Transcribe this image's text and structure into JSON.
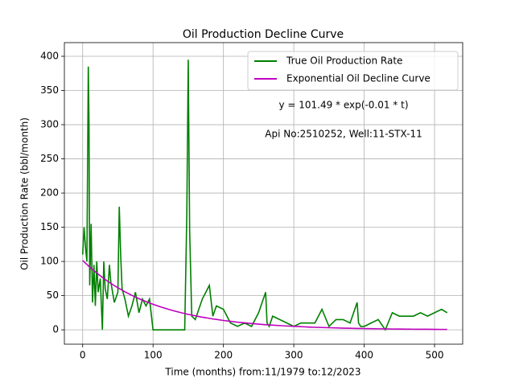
{
  "chart_data": {
    "type": "line",
    "title": "Oil Production Decline Curve",
    "x_label": "Time (months) from:11/1979 to:12/2023",
    "y_label": "Oil Production Rate (bbl/month)",
    "annotations": [
      "y = 101.49 * exp(-0.01 * t)",
      "Api No:2510252, Well:11-STX-11"
    ],
    "x": [
      0,
      2,
      4,
      6,
      8,
      9,
      10,
      12,
      14,
      16,
      18,
      20,
      22,
      25,
      28,
      30,
      32,
      35,
      38,
      40,
      45,
      50,
      52,
      54,
      56,
      60,
      65,
      70,
      75,
      80,
      85,
      90,
      95,
      100,
      110,
      120,
      130,
      140,
      145,
      148,
      150,
      152,
      155,
      160,
      170,
      180,
      185,
      190,
      200,
      210,
      220,
      230,
      240,
      250,
      260,
      262,
      265,
      270,
      280,
      290,
      300,
      310,
      320,
      330,
      340,
      350,
      360,
      370,
      380,
      390,
      392,
      395,
      400,
      410,
      420,
      430,
      440,
      450,
      460,
      470,
      480,
      490,
      500,
      510,
      518
    ],
    "series": [
      {
        "name": "True Oil Production Rate",
        "color": "#008000",
        "values": [
          110,
          150,
          120,
          100,
          385,
          300,
          65,
          155,
          40,
          95,
          35,
          100,
          55,
          75,
          0,
          100,
          60,
          45,
          95,
          70,
          40,
          55,
          180,
          110,
          60,
          45,
          20,
          35,
          55,
          25,
          45,
          35,
          45,
          0,
          0,
          0,
          0,
          0,
          0,
          170,
          395,
          145,
          20,
          15,
          45,
          65,
          20,
          35,
          30,
          10,
          5,
          10,
          5,
          25,
          55,
          10,
          5,
          20,
          15,
          10,
          5,
          10,
          10,
          10,
          30,
          5,
          15,
          15,
          10,
          40,
          10,
          5,
          5,
          10,
          15,
          0,
          25,
          20,
          20,
          20,
          25,
          20,
          25,
          30,
          25
        ]
      },
      {
        "name": "Exponential Oil Decline Curve",
        "color": "#bf00bf",
        "values": [
          101.5,
          99.5,
          97.5,
          95.6,
          93.7,
          92.8,
          91.8,
          90.0,
          88.3,
          86.5,
          84.8,
          83.1,
          81.5,
          79.0,
          76.7,
          75.2,
          73.7,
          71.5,
          69.4,
          68.0,
          64.7,
          61.6,
          60.3,
          59.2,
          58.0,
          55.7,
          53.0,
          50.4,
          47.9,
          45.6,
          43.4,
          41.3,
          39.3,
          37.3,
          33.8,
          30.6,
          27.7,
          25.0,
          23.8,
          23.1,
          22.6,
          22.2,
          21.6,
          20.5,
          18.5,
          16.8,
          15.9,
          15.2,
          13.7,
          12.4,
          11.2,
          10.2,
          9.2,
          8.3,
          7.5,
          7.4,
          7.1,
          6.8,
          6.2,
          5.6,
          5.1,
          4.6,
          4.1,
          3.7,
          3.4,
          3.1,
          2.8,
          2.5,
          2.3,
          2.0,
          2.0,
          2.0,
          1.9,
          1.7,
          1.5,
          1.4,
          1.2,
          1.1,
          1.0,
          0.9,
          0.8,
          0.8,
          0.7,
          0.6,
          0.6
        ]
      }
    ],
    "xlim": [
      -26,
      540
    ],
    "ylim": [
      -21,
      420
    ],
    "xticks": [
      0,
      100,
      200,
      300,
      400,
      500
    ],
    "yticks": [
      0,
      50,
      100,
      150,
      200,
      250,
      300,
      350,
      400
    ],
    "grid": true,
    "legend": "upper right"
  }
}
